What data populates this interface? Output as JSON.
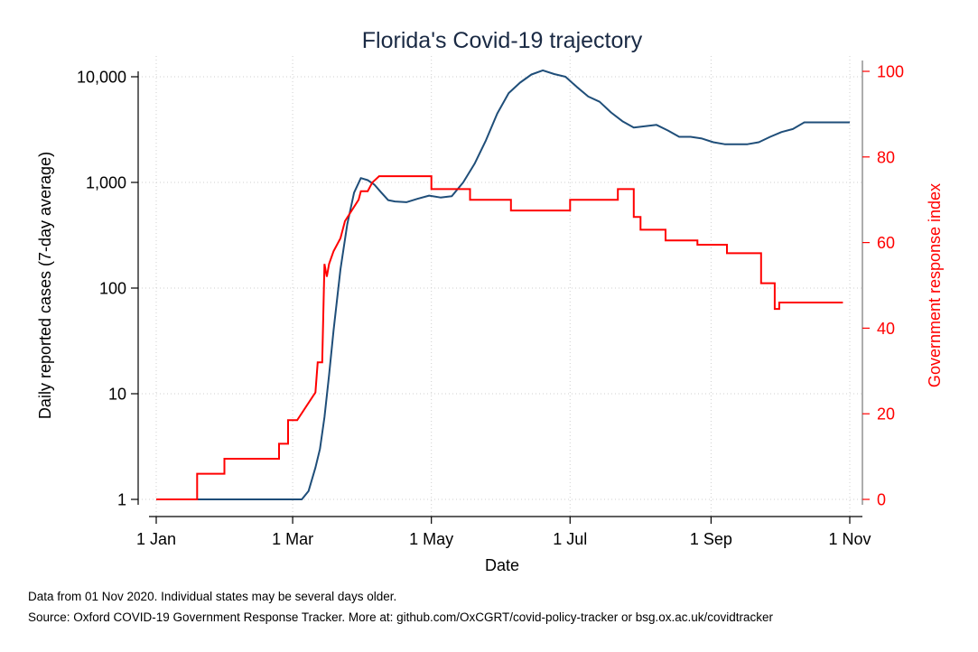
{
  "chart_data": {
    "type": "line",
    "title": "Florida's Covid-19 trajectory",
    "xlabel": "Date",
    "ylabel_left": "Daily reported cases (7-day average)",
    "ylabel_right": "Government response index",
    "x_ticks": [
      "1 Jan",
      "1 Mar",
      "1 May",
      "1 Jul",
      "1 Sep",
      "1 Nov"
    ],
    "x_tick_days": [
      0,
      60,
      121,
      182,
      244,
      305
    ],
    "y_left_scale": "log",
    "y_left_ticks": [
      "1",
      "10",
      "100",
      "1,000",
      "10,000"
    ],
    "y_left_tick_values": [
      1,
      10,
      100,
      1000,
      10000
    ],
    "y_right_ticks": [
      "0",
      "20",
      "40",
      "60",
      "80",
      "100"
    ],
    "y_right_tick_values": [
      0,
      20,
      40,
      60,
      80,
      100
    ],
    "ylim_right": [
      0,
      100
    ],
    "grid": true,
    "colors": {
      "cases": "#1f4e79",
      "index": "#ff0000",
      "axis": "#000000",
      "right_axis": "#ff0000"
    },
    "series": [
      {
        "axis": "left",
        "x": [
          "2020-01-01",
          "2020-01-11",
          "2020-01-21",
          "2020-01-31",
          "2020-02-10",
          "2020-02-20",
          "2020-03-01",
          "2020-03-05",
          "2020-03-08",
          "2020-03-11",
          "2020-03-13",
          "2020-03-15",
          "2020-03-17",
          "2020-03-19",
          "2020-03-22",
          "2020-03-25",
          "2020-03-28",
          "2020-03-31",
          "2020-04-03",
          "2020-04-06",
          "2020-04-09",
          "2020-04-12",
          "2020-04-15",
          "2020-04-20",
          "2020-04-25",
          "2020-04-30",
          "2020-05-05",
          "2020-05-10",
          "2020-05-15",
          "2020-05-20",
          "2020-05-25",
          "2020-05-30",
          "2020-06-04",
          "2020-06-09",
          "2020-06-14",
          "2020-06-19",
          "2020-06-24",
          "2020-06-29",
          "2020-07-04",
          "2020-07-09",
          "2020-07-14",
          "2020-07-19",
          "2020-07-24",
          "2020-07-29",
          "2020-08-03",
          "2020-08-08",
          "2020-08-13",
          "2020-08-18",
          "2020-08-23",
          "2020-08-28",
          "2020-09-02",
          "2020-09-07",
          "2020-09-12",
          "2020-09-17",
          "2020-09-22",
          "2020-09-27",
          "2020-10-02",
          "2020-10-07",
          "2020-10-12",
          "2020-10-17",
          "2020-10-22",
          "2020-10-27",
          "2020-11-01"
        ],
        "values": [
          1,
          1,
          1,
          1,
          1,
          1,
          1,
          1,
          1.2,
          2,
          3,
          6,
          15,
          40,
          150,
          400,
          800,
          1100,
          1050,
          950,
          800,
          680,
          660,
          650,
          700,
          750,
          720,
          740,
          1000,
          1500,
          2500,
          4500,
          7000,
          8800,
          10500,
          11500,
          10600,
          10000,
          8000,
          6500,
          5800,
          4600,
          3800,
          3300,
          3400,
          3500,
          3100,
          2700,
          2700,
          2600,
          2400,
          2300,
          2300,
          2300,
          2400,
          2700,
          3000,
          3200,
          3700,
          3700,
          3700,
          3700,
          3700
        ]
      },
      {
        "axis": "right",
        "x": [
          "2020-01-01",
          "2020-01-19",
          "2020-01-19",
          "2020-01-31",
          "2020-01-31",
          "2020-02-24",
          "2020-02-24",
          "2020-02-28",
          "2020-02-28",
          "2020-03-03",
          "2020-03-03",
          "2020-03-11",
          "2020-03-11",
          "2020-03-12",
          "2020-03-12",
          "2020-03-14",
          "2020-03-14",
          "2020-03-15",
          "2020-03-15",
          "2020-03-16",
          "2020-03-16",
          "2020-03-17",
          "2020-03-17",
          "2020-03-19",
          "2020-03-19",
          "2020-03-22",
          "2020-03-22",
          "2020-03-24",
          "2020-03-24",
          "2020-03-30",
          "2020-03-30",
          "2020-03-31",
          "2020-03-31",
          "2020-04-03",
          "2020-04-03",
          "2020-04-05",
          "2020-04-05",
          "2020-04-08",
          "2020-04-08",
          "2020-05-01",
          "2020-05-01",
          "2020-05-18",
          "2020-05-18",
          "2020-06-05",
          "2020-06-05",
          "2020-07-01",
          "2020-07-01",
          "2020-07-22",
          "2020-07-22",
          "2020-07-29",
          "2020-07-29",
          "2020-08-01",
          "2020-08-01",
          "2020-08-12",
          "2020-08-12",
          "2020-08-26",
          "2020-08-26",
          "2020-09-08",
          "2020-09-08",
          "2020-09-23",
          "2020-09-23",
          "2020-09-29",
          "2020-09-29",
          "2020-10-01",
          "2020-10-01",
          "2020-10-29"
        ],
        "values": [
          0,
          0,
          6,
          6,
          9.5,
          9.5,
          13,
          13,
          18.5,
          18.5,
          18.5,
          25,
          25,
          32,
          32,
          32,
          32,
          55,
          55,
          52,
          52,
          55,
          55,
          58,
          58,
          61,
          61,
          65,
          65,
          70,
          70,
          72,
          72,
          72,
          72,
          74,
          74,
          75.5,
          75.5,
          75.5,
          72.5,
          72.5,
          70,
          70,
          67.5,
          67.5,
          70,
          70,
          72.5,
          72.5,
          66,
          66,
          63,
          63,
          60.5,
          60.5,
          59.5,
          59.5,
          57.5,
          57.5,
          50.5,
          50.5,
          44.5,
          44.5,
          46,
          46
        ]
      }
    ]
  },
  "notes": {
    "line1": "Data from 01 Nov 2020. Individual states may be several days older.",
    "line2": "Source: Oxford COVID-19 Government Response Tracker. More at: github.com/OxCGRT/covid-policy-tracker or bsg.ox.ac.uk/covidtracker"
  }
}
